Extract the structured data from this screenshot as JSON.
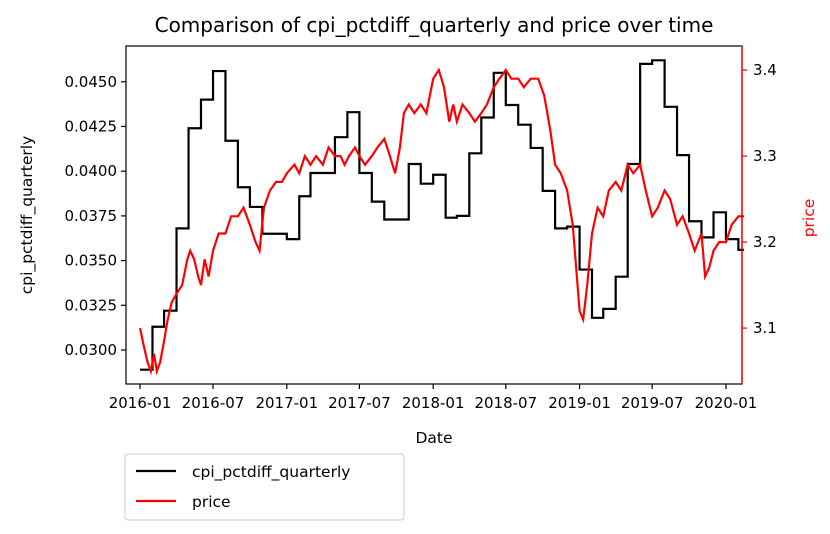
{
  "chart_data": {
    "type": "line",
    "title": "Comparison of cpi_pctdiff_quarterly and price over time",
    "xlabel": "Date",
    "ylabel_left": "cpi_pctdiff_quarterly",
    "ylabel_right": "price",
    "x_ticks": [
      "2016-01",
      "2016-07",
      "2017-01",
      "2017-07",
      "2018-01",
      "2018-07",
      "2019-01",
      "2019-07",
      "2020-01"
    ],
    "y_left_ticks": [
      "0.0300",
      "0.0325",
      "0.0350",
      "0.0375",
      "0.0400",
      "0.0425",
      "0.0450"
    ],
    "y_right_ticks": [
      "3.1",
      "3.2",
      "3.3",
      "3.4"
    ],
    "ylim_left": [
      0.0281,
      0.047
    ],
    "ylim_right": [
      3.035,
      3.428
    ],
    "grid": false,
    "legend_position": "below-left",
    "colors": {
      "cpi": "#000000",
      "price": "#ff0000"
    },
    "series": [
      {
        "name": "cpi_pctdiff_quarterly",
        "axis": "left",
        "color": "#000000",
        "points": [
          [
            "2016-01-01",
            0.0289
          ],
          [
            "2016-02-01",
            0.0289
          ],
          [
            "2016-02-01",
            0.0313
          ],
          [
            "2016-03-01",
            0.0313
          ],
          [
            "2016-03-01",
            0.0322
          ],
          [
            "2016-04-01",
            0.0322
          ],
          [
            "2016-04-01",
            0.0368
          ],
          [
            "2016-05-01",
            0.0368
          ],
          [
            "2016-05-01",
            0.0424
          ],
          [
            "2016-06-01",
            0.0424
          ],
          [
            "2016-06-01",
            0.044
          ],
          [
            "2016-07-01",
            0.044
          ],
          [
            "2016-07-01",
            0.0456
          ],
          [
            "2016-08-01",
            0.0456
          ],
          [
            "2016-08-01",
            0.0417
          ],
          [
            "2016-09-01",
            0.0417
          ],
          [
            "2016-09-01",
            0.0391
          ],
          [
            "2016-10-01",
            0.0391
          ],
          [
            "2016-10-01",
            0.038
          ],
          [
            "2016-11-01",
            0.038
          ],
          [
            "2016-11-01",
            0.0365
          ],
          [
            "2017-01-01",
            0.0365
          ],
          [
            "2017-01-01",
            0.0362
          ],
          [
            "2017-02-01",
            0.0362
          ],
          [
            "2017-02-01",
            0.0386
          ],
          [
            "2017-03-01",
            0.0386
          ],
          [
            "2017-03-01",
            0.0399
          ],
          [
            "2017-05-01",
            0.0399
          ],
          [
            "2017-05-01",
            0.0419
          ],
          [
            "2017-06-01",
            0.0419
          ],
          [
            "2017-06-01",
            0.0433
          ],
          [
            "2017-07-01",
            0.0433
          ],
          [
            "2017-07-01",
            0.0399
          ],
          [
            "2017-08-01",
            0.0399
          ],
          [
            "2017-08-01",
            0.0383
          ],
          [
            "2017-09-01",
            0.0383
          ],
          [
            "2017-09-01",
            0.0373
          ],
          [
            "2017-11-01",
            0.0373
          ],
          [
            "2017-11-01",
            0.0404
          ],
          [
            "2017-12-01",
            0.0404
          ],
          [
            "2017-12-01",
            0.0393
          ],
          [
            "2018-01-01",
            0.0393
          ],
          [
            "2018-01-01",
            0.0398
          ],
          [
            "2018-02-01",
            0.0398
          ],
          [
            "2018-02-01",
            0.0374
          ],
          [
            "2018-03-01",
            0.0374
          ],
          [
            "2018-03-01",
            0.0375
          ],
          [
            "2018-04-01",
            0.0375
          ],
          [
            "2018-04-01",
            0.041
          ],
          [
            "2018-05-01",
            0.041
          ],
          [
            "2018-05-01",
            0.043
          ],
          [
            "2018-06-01",
            0.043
          ],
          [
            "2018-06-01",
            0.0455
          ],
          [
            "2018-07-01",
            0.0455
          ],
          [
            "2018-07-01",
            0.0437
          ],
          [
            "2018-08-01",
            0.0437
          ],
          [
            "2018-08-01",
            0.0426
          ],
          [
            "2018-09-01",
            0.0426
          ],
          [
            "2018-09-01",
            0.0413
          ],
          [
            "2018-10-01",
            0.0413
          ],
          [
            "2018-10-01",
            0.0389
          ],
          [
            "2018-11-01",
            0.0389
          ],
          [
            "2018-11-01",
            0.0368
          ],
          [
            "2018-12-01",
            0.0368
          ],
          [
            "2018-12-01",
            0.0369
          ],
          [
            "2019-01-01",
            0.0369
          ],
          [
            "2019-01-01",
            0.0345
          ],
          [
            "2019-02-01",
            0.0345
          ],
          [
            "2019-02-01",
            0.0318
          ],
          [
            "2019-03-01",
            0.0318
          ],
          [
            "2019-03-01",
            0.0323
          ],
          [
            "2019-04-01",
            0.0323
          ],
          [
            "2019-04-01",
            0.0341
          ],
          [
            "2019-05-01",
            0.0341
          ],
          [
            "2019-05-01",
            0.0404
          ],
          [
            "2019-06-01",
            0.0404
          ],
          [
            "2019-06-01",
            0.046
          ],
          [
            "2019-07-01",
            0.046
          ],
          [
            "2019-07-01",
            0.0462
          ],
          [
            "2019-08-01",
            0.0462
          ],
          [
            "2019-08-01",
            0.0436
          ],
          [
            "2019-09-01",
            0.0436
          ],
          [
            "2019-09-01",
            0.0409
          ],
          [
            "2019-10-01",
            0.0409
          ],
          [
            "2019-10-01",
            0.0372
          ],
          [
            "2019-11-01",
            0.0372
          ],
          [
            "2019-11-01",
            0.0363
          ],
          [
            "2019-12-01",
            0.0363
          ],
          [
            "2019-12-01",
            0.0377
          ],
          [
            "2020-01-01",
            0.0377
          ],
          [
            "2020-01-01",
            0.0362
          ],
          [
            "2020-02-01",
            0.0362
          ],
          [
            "2020-02-01",
            0.0356
          ],
          [
            "2020-02-15",
            0.0356
          ]
        ]
      },
      {
        "name": "price",
        "axis": "right",
        "color": "#ff0000",
        "points": [
          [
            "2016-01-01",
            3.1
          ],
          [
            "2016-01-10",
            3.08
          ],
          [
            "2016-01-20",
            3.06
          ],
          [
            "2016-01-28",
            3.05
          ],
          [
            "2016-02-05",
            3.07
          ],
          [
            "2016-02-12",
            3.05
          ],
          [
            "2016-02-20",
            3.06
          ],
          [
            "2016-02-28",
            3.08
          ],
          [
            "2016-03-10",
            3.11
          ],
          [
            "2016-03-20",
            3.13
          ],
          [
            "2016-04-01",
            3.14
          ],
          [
            "2016-04-15",
            3.15
          ],
          [
            "2016-04-28",
            3.18
          ],
          [
            "2016-05-05",
            3.19
          ],
          [
            "2016-05-15",
            3.18
          ],
          [
            "2016-05-25",
            3.16
          ],
          [
            "2016-06-01",
            3.15
          ],
          [
            "2016-06-10",
            3.18
          ],
          [
            "2016-06-20",
            3.16
          ],
          [
            "2016-07-01",
            3.19
          ],
          [
            "2016-07-15",
            3.21
          ],
          [
            "2016-08-01",
            3.21
          ],
          [
            "2016-08-15",
            3.23
          ],
          [
            "2016-09-01",
            3.23
          ],
          [
            "2016-09-15",
            3.24
          ],
          [
            "2016-10-01",
            3.22
          ],
          [
            "2016-10-15",
            3.2
          ],
          [
            "2016-10-25",
            3.19
          ],
          [
            "2016-11-05",
            3.24
          ],
          [
            "2016-11-20",
            3.26
          ],
          [
            "2016-12-05",
            3.27
          ],
          [
            "2016-12-20",
            3.27
          ],
          [
            "2017-01-01",
            3.28
          ],
          [
            "2017-01-20",
            3.29
          ],
          [
            "2017-02-01",
            3.28
          ],
          [
            "2017-02-15",
            3.3
          ],
          [
            "2017-03-01",
            3.29
          ],
          [
            "2017-03-15",
            3.3
          ],
          [
            "2017-04-01",
            3.29
          ],
          [
            "2017-04-15",
            3.31
          ],
          [
            "2017-05-01",
            3.3
          ],
          [
            "2017-05-15",
            3.3
          ],
          [
            "2017-05-25",
            3.29
          ],
          [
            "2017-06-05",
            3.3
          ],
          [
            "2017-06-20",
            3.31
          ],
          [
            "2017-07-01",
            3.3
          ],
          [
            "2017-07-15",
            3.29
          ],
          [
            "2017-08-01",
            3.3
          ],
          [
            "2017-08-15",
            3.31
          ],
          [
            "2017-09-01",
            3.32
          ],
          [
            "2017-09-15",
            3.3
          ],
          [
            "2017-09-28",
            3.28
          ],
          [
            "2017-10-10",
            3.31
          ],
          [
            "2017-10-20",
            3.35
          ],
          [
            "2017-11-01",
            3.36
          ],
          [
            "2017-11-15",
            3.35
          ],
          [
            "2017-12-01",
            3.36
          ],
          [
            "2017-12-15",
            3.35
          ],
          [
            "2018-01-01",
            3.39
          ],
          [
            "2018-01-15",
            3.4
          ],
          [
            "2018-01-28",
            3.38
          ],
          [
            "2018-02-10",
            3.34
          ],
          [
            "2018-02-20",
            3.36
          ],
          [
            "2018-03-01",
            3.34
          ],
          [
            "2018-03-15",
            3.36
          ],
          [
            "2018-04-01",
            3.35
          ],
          [
            "2018-04-15",
            3.34
          ],
          [
            "2018-05-01",
            3.35
          ],
          [
            "2018-05-15",
            3.36
          ],
          [
            "2018-06-01",
            3.38
          ],
          [
            "2018-06-15",
            3.39
          ],
          [
            "2018-07-01",
            3.4
          ],
          [
            "2018-07-15",
            3.39
          ],
          [
            "2018-08-01",
            3.39
          ],
          [
            "2018-08-15",
            3.38
          ],
          [
            "2018-09-01",
            3.39
          ],
          [
            "2018-09-20",
            3.39
          ],
          [
            "2018-10-05",
            3.37
          ],
          [
            "2018-10-20",
            3.33
          ],
          [
            "2018-11-01",
            3.29
          ],
          [
            "2018-11-15",
            3.28
          ],
          [
            "2018-12-01",
            3.26
          ],
          [
            "2018-12-15",
            3.22
          ],
          [
            "2019-01-01",
            3.12
          ],
          [
            "2019-01-10",
            3.11
          ],
          [
            "2019-01-20",
            3.15
          ],
          [
            "2019-02-01",
            3.21
          ],
          [
            "2019-02-15",
            3.24
          ],
          [
            "2019-03-01",
            3.23
          ],
          [
            "2019-03-15",
            3.26
          ],
          [
            "2019-04-01",
            3.27
          ],
          [
            "2019-04-15",
            3.26
          ],
          [
            "2019-05-01",
            3.29
          ],
          [
            "2019-05-15",
            3.28
          ],
          [
            "2019-06-01",
            3.29
          ],
          [
            "2019-06-15",
            3.26
          ],
          [
            "2019-07-01",
            3.23
          ],
          [
            "2019-07-15",
            3.24
          ],
          [
            "2019-08-01",
            3.26
          ],
          [
            "2019-08-15",
            3.25
          ],
          [
            "2019-09-01",
            3.22
          ],
          [
            "2019-09-15",
            3.23
          ],
          [
            "2019-10-01",
            3.21
          ],
          [
            "2019-10-15",
            3.19
          ],
          [
            "2019-11-01",
            3.21
          ],
          [
            "2019-11-10",
            3.16
          ],
          [
            "2019-11-20",
            3.17
          ],
          [
            "2019-12-01",
            3.19
          ],
          [
            "2019-12-15",
            3.2
          ],
          [
            "2020-01-01",
            3.2
          ],
          [
            "2020-01-15",
            3.22
          ],
          [
            "2020-02-01",
            3.23
          ],
          [
            "2020-02-15",
            3.23
          ]
        ]
      }
    ]
  }
}
